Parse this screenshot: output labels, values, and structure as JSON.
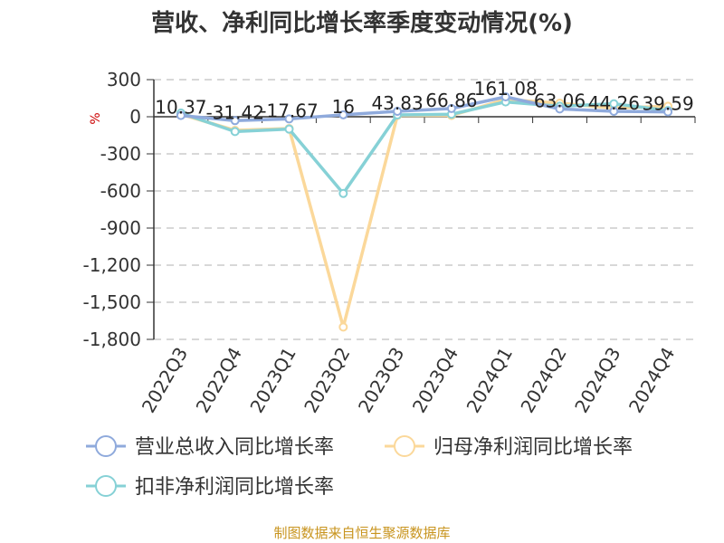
{
  "chart_data": {
    "type": "line",
    "title": "营收、净利同比增长率季度变动情况(%)",
    "ylabel": "%",
    "xlabel": "",
    "categories": [
      "2022Q3",
      "2022Q4",
      "2023Q1",
      "2023Q2",
      "2023Q3",
      "2023Q4",
      "2024Q1",
      "2024Q2",
      "2024Q3",
      "2024Q4"
    ],
    "yticks": [
      "300",
      "0",
      "-300",
      "-600",
      "-900",
      "-1,200",
      "-1,500",
      "-1,800"
    ],
    "ylim": [
      -1800,
      300
    ],
    "grid": true,
    "legend_position": "bottom",
    "series": [
      {
        "name": "营业总收入同比增长率",
        "color": "#8faadc",
        "values": [
          10.37,
          -31.42,
          -17.67,
          16,
          43.83,
          66.86,
          161.08,
          63.06,
          44.26,
          39.59
        ],
        "labels": [
          "10.37",
          "-31.42",
          "-17.67",
          "16",
          "43.83",
          "66.86",
          "161.08",
          "63.06",
          "44.26",
          "39.59"
        ]
      },
      {
        "name": "归母净利润同比增长率",
        "color": "#fbd89a",
        "values": [
          20,
          -110,
          -95,
          -1700,
          10,
          10,
          140,
          110,
          70,
          85
        ]
      },
      {
        "name": "扣非净利润同比增长率",
        "color": "#86d1d6",
        "values": [
          30,
          -120,
          -100,
          -620,
          15,
          20,
          120,
          85,
          105,
          50
        ]
      }
    ],
    "source": "制图数据来自恒生聚源数据库"
  }
}
